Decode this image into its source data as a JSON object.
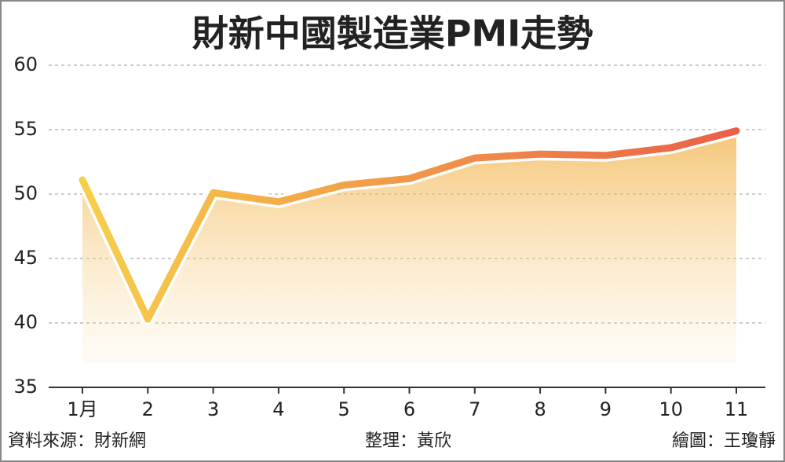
{
  "chart_data": {
    "type": "line",
    "title": "財新中國製造業PMI走勢",
    "categories": [
      "1月",
      "2",
      "3",
      "4",
      "5",
      "6",
      "7",
      "8",
      "9",
      "10",
      "11"
    ],
    "values": [
      51.1,
      40.3,
      50.1,
      49.4,
      50.7,
      51.2,
      52.8,
      53.1,
      53.0,
      53.6,
      54.9
    ],
    "ylim": [
      35,
      60
    ],
    "yticks": [
      35,
      40,
      45,
      50,
      55,
      60
    ],
    "grid": true,
    "colors": [
      "#f7cf4a",
      "#ea5f48"
    ],
    "source": "資料來源：財新網",
    "editor": "整理：黃欣",
    "artist": "繪圖：王瓊靜"
  }
}
